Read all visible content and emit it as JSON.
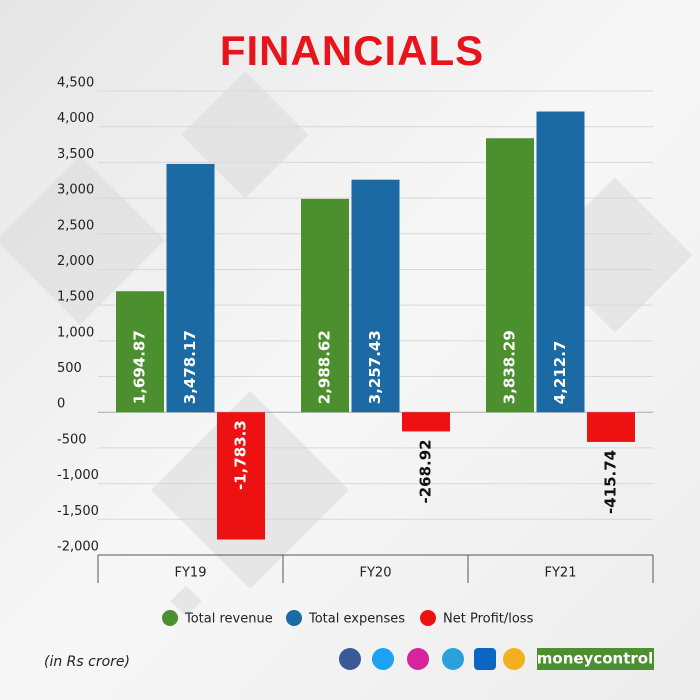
{
  "chart_data": {
    "type": "bar",
    "title": "FINANCIALS",
    "categories": [
      "FY19",
      "FY20",
      "FY21"
    ],
    "series": [
      {
        "name": "Total revenue",
        "color": "#4b8f2e",
        "values": [
          1694.87,
          2988.62,
          3838.29
        ],
        "value_labels": [
          "1,694.87",
          "2,988.62",
          "3,838.29"
        ]
      },
      {
        "name": "Total expenses",
        "color": "#1b6aa3",
        "values": [
          3478.17,
          3257.43,
          4212.7
        ],
        "value_labels": [
          "3,478.17",
          "3,257.43",
          "4,212.7"
        ]
      },
      {
        "name": "Net Profit/loss",
        "color": "#ee1111",
        "values": [
          -1783.3,
          -268.92,
          -415.74
        ],
        "value_labels": [
          "-1,783.3",
          "-268.92",
          "-415.74"
        ]
      }
    ],
    "ylim": [
      -2000,
      4500
    ],
    "yticks": [
      {
        "value": -2000,
        "label": "-2,000"
      },
      {
        "value": -1500,
        "label": "-1,500"
      },
      {
        "value": -1000,
        "label": "-1,000"
      },
      -500,
      0,
      500,
      {
        "value": 1000,
        "label": "1,000"
      },
      {
        "value": 1500,
        "label": "1,500"
      },
      {
        "value": 2000,
        "label": "2,000"
      },
      {
        "value": 2500,
        "label": "2,500"
      },
      {
        "value": 3000,
        "label": "3,000"
      },
      {
        "value": 3500,
        "label": "3,500"
      },
      {
        "value": 4000,
        "label": "4,000"
      },
      {
        "value": 4500,
        "label": "4,500"
      }
    ],
    "grid": true,
    "note": "(in Rs crore)",
    "brand": "moneycontrol"
  }
}
